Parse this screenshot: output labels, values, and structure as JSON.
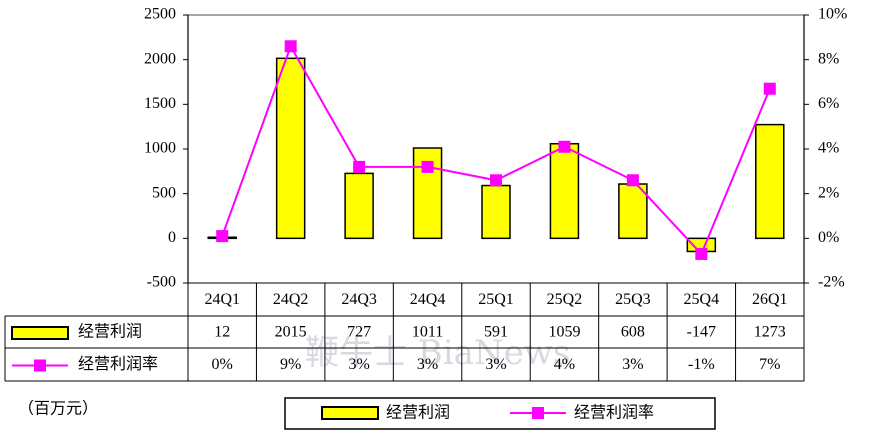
{
  "chart_data": {
    "type": "bar_line",
    "unit_label": "（百万元）",
    "watermark": "鞭牛士 BiaNews",
    "categories": [
      "24Q1",
      "24Q2",
      "24Q3",
      "24Q4",
      "25Q1",
      "25Q2",
      "25Q3",
      "25Q4",
      "26Q1"
    ],
    "series": [
      {
        "name": "经营利润",
        "type": "bar",
        "color": "#ffff00",
        "values": [
          12,
          2015,
          727,
          1011,
          591,
          1059,
          608,
          -147,
          1273
        ]
      },
      {
        "name": "经营利润率",
        "type": "line",
        "axis": "y2",
        "color": "#ff00ff",
        "values": [
          0.1,
          8.6,
          3.2,
          3.2,
          2.6,
          4.1,
          2.6,
          -0.7,
          6.7
        ],
        "value_labels": [
          "0%",
          "9%",
          "3%",
          "3%",
          "3%",
          "4%",
          "3%",
          "-1%",
          "7%"
        ]
      }
    ],
    "ylim": [
      -500,
      2500
    ],
    "yticks": [
      -500,
      0,
      500,
      1000,
      1500,
      2000,
      2500
    ],
    "y2lim": [
      -2,
      10
    ],
    "y2ticks": [
      {
        "value": -2,
        "label": "-2%"
      },
      {
        "value": 0,
        "label": "0%"
      },
      {
        "value": 2,
        "label": "2%"
      },
      {
        "value": 4,
        "label": "4%"
      },
      {
        "value": 6,
        "label": "6%"
      },
      {
        "value": 8,
        "label": "8%"
      },
      {
        "value": 10,
        "label": "10%"
      }
    ],
    "grid": false
  }
}
